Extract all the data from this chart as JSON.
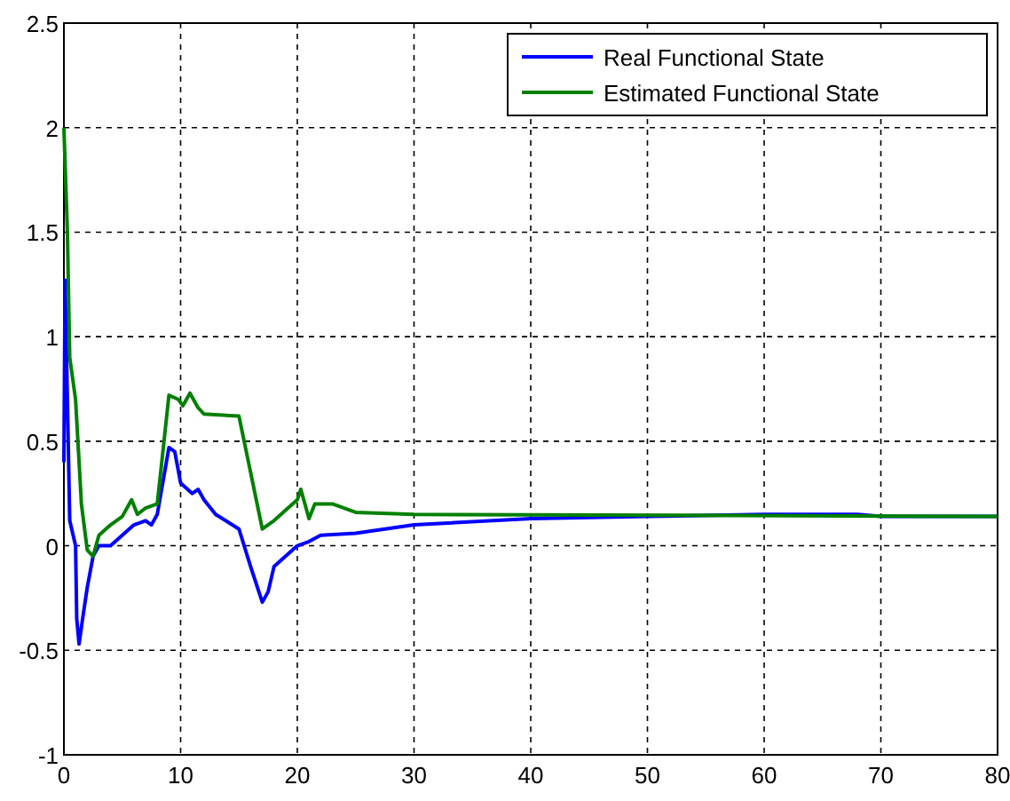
{
  "chart_data": {
    "type": "line",
    "xlim": [
      0,
      80
    ],
    "xticks": [
      0,
      10,
      20,
      30,
      40,
      50,
      60,
      70,
      80
    ],
    "ylim": [
      -1,
      2.5
    ],
    "yticks": [
      -1,
      -0.5,
      0,
      0.5,
      1,
      1.5,
      2,
      2.5
    ],
    "grid": true,
    "legend": "top right",
    "line_style": "solid",
    "marker": "none",
    "series": [
      {
        "name": "Real Functional State",
        "color": "#0000ff",
        "x": [
          0,
          0.1,
          0.3,
          0.5,
          1,
          1.1,
          1.3,
          1.6,
          2,
          2.5,
          3,
          4,
          5,
          6,
          7,
          7.5,
          8,
          9,
          9.5,
          10,
          11,
          11.5,
          12,
          13,
          15,
          16,
          17,
          17.5,
          18,
          19,
          20,
          21,
          22,
          25,
          30,
          40,
          50,
          60,
          68,
          70,
          80
        ],
        "values": [
          0.4,
          1.27,
          0.7,
          0.12,
          0,
          -0.35,
          -0.47,
          -0.35,
          -0.2,
          -0.05,
          0,
          0,
          0.05,
          0.1,
          0.12,
          0.1,
          0.15,
          0.47,
          0.45,
          0.3,
          0.25,
          0.27,
          0.22,
          0.15,
          0.08,
          -0.1,
          -0.27,
          -0.22,
          -0.1,
          -0.05,
          0,
          0.02,
          0.05,
          0.06,
          0.1,
          0.13,
          0.14,
          0.15,
          0.15,
          0.14,
          0.14
        ]
      },
      {
        "name": "Estimated Functional State",
        "color": "#008000",
        "x": [
          0,
          0.3,
          0.5,
          1,
          1.5,
          2,
          2.5,
          3,
          4,
          5,
          5.8,
          6.3,
          7,
          8,
          9,
          9.8,
          10.2,
          10.8,
          11.5,
          12,
          15,
          17,
          18,
          20,
          20.3,
          21,
          21.5,
          23,
          25,
          30,
          80
        ],
        "values": [
          2,
          1.5,
          0.9,
          0.7,
          0.2,
          -0.02,
          -0.05,
          0.05,
          0.1,
          0.14,
          0.22,
          0.15,
          0.18,
          0.2,
          0.72,
          0.7,
          0.67,
          0.73,
          0.66,
          0.63,
          0.62,
          0.08,
          0.12,
          0.22,
          0.27,
          0.13,
          0.2,
          0.2,
          0.16,
          0.15,
          0.14
        ]
      }
    ]
  }
}
